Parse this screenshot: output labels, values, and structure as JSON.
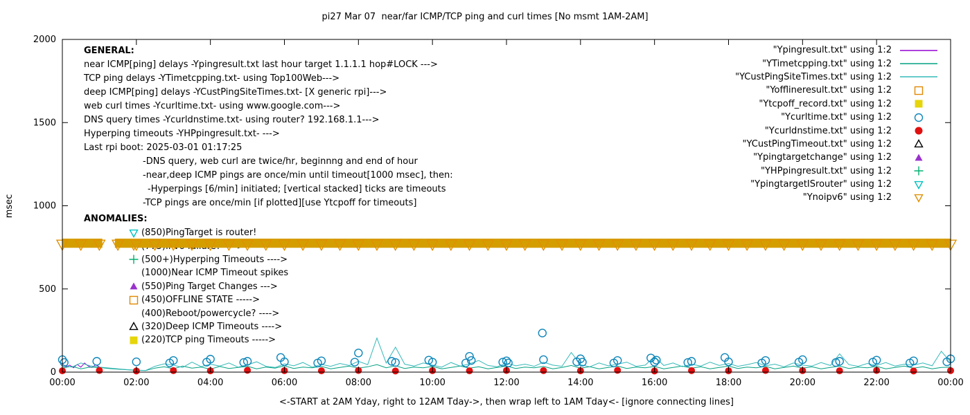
{
  "general": {
    "heading": "GENERAL:",
    "lines": [
      {
        "text": "near ICMP[ping] delays -Ypingresult.txt last hour target 1.1.1.1 hop#LOCK --->",
        "indent": 0
      },
      {
        "text": "TCP ping delays -YTimetcpping.txt- using Top100Web--->",
        "indent": 0
      },
      {
        "text": "deep ICMP[ping] delays -YCustPingSiteTimes.txt- [X generic rpi]--->",
        "indent": 0
      },
      {
        "text": "web curl times -Ycurltime.txt- using www.google.com--->",
        "indent": 0
      },
      {
        "text": "DNS query times -Ycurldnstime.txt- using router? 192.168.1.1--->",
        "indent": 0
      },
      {
        "text": "Hyperping timeouts -YHPpingresult.txt- --->",
        "indent": 0
      },
      {
        "text": "Last rpi boot: 2025-03-01 01:17:25",
        "indent": 0
      },
      {
        "text": "-DNS query, web curl are twice/hr, beginnng and end of hour",
        "indent": 85
      },
      {
        "text": "-near,deep ICMP pings are once/min until timeout[1000 msec], then:",
        "indent": 85
      },
      {
        "text": "-Hyperpings [6/min] initiated; [vertical stacked] ticks are timeouts",
        "indent": 92
      },
      {
        "text": "-TCP pings are once/min [if plotted][use Ytcpoff for timeouts]",
        "indent": 85
      }
    ]
  },
  "anomalies": {
    "heading": "ANOMALIES:",
    "items": [
      {
        "marker": "triangle-down-open",
        "color": "#00c0c0",
        "text": "(850)PingTarget is router!"
      },
      {
        "marker": "triangle-down-open",
        "color": "#e09000",
        "text": "(775)IPv6 failure? ---->"
      },
      {
        "marker": "plus",
        "color": "#00b070",
        "text": "(500+)Hyperping Timeouts ---->"
      },
      {
        "marker": "none",
        "color": "",
        "text": "(1000)Near ICMP Timeout spikes"
      },
      {
        "marker": "triangle-up-filled",
        "color": "#9932cc",
        "text": "(550)Ping Target Changes --->"
      },
      {
        "marker": "square-open",
        "color": "#e08800",
        "text": "(450)OFFLINE STATE ----->"
      },
      {
        "marker": "none",
        "color": "",
        "text": "(400)Reboot/powercycle? ---->"
      },
      {
        "marker": "triangle-up-open",
        "color": "#000000",
        "text": "(320)Deep ICMP Timeouts ---->"
      },
      {
        "marker": "square-filled",
        "color": "#e6d50a",
        "text": "(220)TCP ping Timeouts ----->"
      }
    ]
  },
  "legend": {
    "items": [
      {
        "label": "\"Ypingresult.txt\" using 1:2",
        "marker": "line",
        "color": "#9400d3"
      },
      {
        "label": "\"YTimetcpping.txt\" using 1:2",
        "marker": "line",
        "color": "#00a080"
      },
      {
        "label": "\"YCustPingSiteTimes.txt\" using 1:2",
        "marker": "line",
        "color": "#35b8b8"
      },
      {
        "label": "\"Yofflineresult.txt\" using 1:2",
        "marker": "square-open",
        "color": "#e08800"
      },
      {
        "label": "\"Ytcpoff_record.txt\" using 1:2",
        "marker": "square-filled",
        "color": "#e6d50a"
      },
      {
        "label": "\"Ycurltime.txt\" using 1:2",
        "marker": "circle-open",
        "color": "#0e86ba"
      },
      {
        "label": "\"Ycurldnstime.txt\" using 1:2",
        "marker": "circle-filled",
        "color": "#e01010"
      },
      {
        "label": "\"YCustPingTimeout.txt\" using 1:2",
        "marker": "triangle-up-open",
        "color": "#000000"
      },
      {
        "label": "\"Ypingtargetchange\" using 1:2",
        "marker": "triangle-up-filled",
        "color": "#9932cc"
      },
      {
        "label": "\"YHPpingresult.txt\" using 1:2",
        "marker": "plus",
        "color": "#00b070"
      },
      {
        "label": "\"YpingtargetISrouter\" using 1:2",
        "marker": "triangle-down-open",
        "color": "#00c0c0"
      },
      {
        "label": "\"Ynoipv6\" using 1:2",
        "marker": "triangle-down-open",
        "color": "#e09000"
      }
    ]
  },
  "chart_data": {
    "type": "line",
    "title": "pi27 Mar 07  near/far ICMP/TCP ping and curl times [No msmt 1AM-2AM]",
    "xlabel": "<-START at 2AM Yday, right to 12AM Tday->, then wrap left to 1AM Tday<- [ignore connecting lines]",
    "ylabel": "msec",
    "xlim": [
      0,
      24
    ],
    "ylim": [
      0,
      2000
    ],
    "y_ticks": [
      0,
      500,
      1000,
      1500,
      2000
    ],
    "x_ticks": [
      {
        "h": 0,
        "label": "00:00"
      },
      {
        "h": 2,
        "label": "02:00"
      },
      {
        "h": 4,
        "label": "04:00"
      },
      {
        "h": 6,
        "label": "06:00"
      },
      {
        "h": 8,
        "label": "08:00"
      },
      {
        "h": 10,
        "label": "10:00"
      },
      {
        "h": 12,
        "label": "12:00"
      },
      {
        "h": 14,
        "label": "14:00"
      },
      {
        "h": 16,
        "label": "16:00"
      },
      {
        "h": 18,
        "label": "18:00"
      },
      {
        "h": 20,
        "label": "20:00"
      },
      {
        "h": 22,
        "label": "22:00"
      },
      {
        "h": 24,
        "label": "00:00"
      }
    ],
    "series": [
      {
        "name": "Ypingresult near ICMP (last hour)",
        "type": "line",
        "color": "#9400d3",
        "points": [
          [
            0,
            50
          ],
          [
            0.1,
            32
          ],
          [
            0.2,
            42
          ],
          [
            0.3,
            26
          ],
          [
            0.4,
            46
          ],
          [
            0.5,
            30
          ],
          [
            0.6,
            55
          ],
          [
            0.7,
            36
          ],
          [
            0.8,
            28
          ],
          [
            0.9,
            44
          ],
          [
            1,
            32
          ]
        ]
      },
      {
        "name": "YTimetcpping TCP ping delays",
        "type": "line",
        "color": "#00a080",
        "x_step": 0.25,
        "values": [
          25,
          35,
          20,
          30,
          28,
          22,
          18,
          14,
          11,
          9,
          24,
          32,
          20,
          36,
          24,
          30,
          18,
          34,
          22,
          28,
          35,
          20,
          30,
          24,
          38,
          22,
          30,
          26,
          34,
          20,
          28,
          36,
          24,
          32,
          45,
          26,
          38,
          22,
          30,
          26,
          34,
          20,
          28,
          36,
          24,
          32,
          20,
          28,
          36,
          22,
          30,
          26,
          34,
          20,
          28,
          40,
          24,
          32,
          20,
          28,
          36,
          22,
          30,
          26,
          34,
          20,
          28,
          36,
          24,
          32,
          20,
          28,
          36,
          22,
          30,
          26,
          34,
          20,
          28,
          36,
          24,
          32,
          20,
          28,
          36,
          22,
          30,
          26,
          34,
          20,
          28,
          36,
          24,
          32,
          20,
          28,
          30
        ]
      },
      {
        "name": "YCustPingSiteTimes deep ICMP delays",
        "type": "line",
        "color": "#35b8b8",
        "x_step": 0.25,
        "values": [
          45,
          30,
          55,
          38,
          30,
          25,
          20,
          15,
          12,
          10,
          35,
          50,
          42,
          28,
          60,
          33,
          48,
          36,
          55,
          30,
          44,
          62,
          35,
          28,
          50,
          38,
          58,
          30,
          46,
          35,
          52,
          40,
          65,
          45,
          205,
          55,
          150,
          48,
          36,
          55,
          42,
          30,
          58,
          36,
          50,
          70,
          40,
          32,
          55,
          38,
          48,
          35,
          60,
          42,
          35,
          118,
          45,
          32,
          55,
          38,
          48,
          60,
          35,
          42,
          95,
          40,
          55,
          33,
          48,
          36,
          60,
          40,
          52,
          35,
          45,
          58,
          38,
          48,
          32,
          55,
          42,
          36,
          58,
          40,
          110,
          45,
          35,
          52,
          40,
          58,
          36,
          48,
          42,
          55,
          38,
          125,
          60
        ]
      },
      {
        "name": "Ycurltime web curl times",
        "type": "points",
        "marker": "circle-open",
        "color": "#0e86ba",
        "points": [
          [
            0,
            75
          ],
          [
            0.05,
            58
          ],
          [
            0.93,
            65
          ],
          [
            2,
            62
          ],
          [
            2.9,
            55
          ],
          [
            3,
            70
          ],
          [
            3.9,
            60
          ],
          [
            4,
            78
          ],
          [
            4.9,
            58
          ],
          [
            5,
            65
          ],
          [
            5.9,
            88
          ],
          [
            6,
            62
          ],
          [
            6.9,
            55
          ],
          [
            7,
            68
          ],
          [
            7.9,
            60
          ],
          [
            8,
            115
          ],
          [
            8.9,
            65
          ],
          [
            9,
            58
          ],
          [
            9.9,
            72
          ],
          [
            10,
            60
          ],
          [
            10.9,
            55
          ],
          [
            11,
            95
          ],
          [
            11.05,
            70
          ],
          [
            11.9,
            60
          ],
          [
            12,
            68
          ],
          [
            12.05,
            55
          ],
          [
            12.97,
            235
          ],
          [
            13,
            75
          ],
          [
            13.9,
            62
          ],
          [
            14,
            80
          ],
          [
            14.05,
            60
          ],
          [
            14.9,
            55
          ],
          [
            15,
            70
          ],
          [
            15.9,
            85
          ],
          [
            16,
            60
          ],
          [
            16.05,
            72
          ],
          [
            16.9,
            58
          ],
          [
            17,
            65
          ],
          [
            17.9,
            88
          ],
          [
            18,
            62
          ],
          [
            18.9,
            55
          ],
          [
            19,
            70
          ],
          [
            19.9,
            60
          ],
          [
            20,
            75
          ],
          [
            20.9,
            58
          ],
          [
            21,
            65
          ],
          [
            21.9,
            60
          ],
          [
            22,
            72
          ],
          [
            22.9,
            55
          ],
          [
            23,
            68
          ],
          [
            23.9,
            62
          ],
          [
            24,
            80
          ]
        ]
      },
      {
        "name": "Ycurldnstime DNS query times",
        "type": "points",
        "marker": "circle-filled",
        "color": "#e01010",
        "points": [
          [
            0,
            8
          ],
          [
            1,
            10
          ],
          [
            2,
            7
          ],
          [
            3,
            9
          ],
          [
            4,
            8
          ],
          [
            5,
            11
          ],
          [
            6,
            9
          ],
          [
            7,
            8
          ],
          [
            8,
            10
          ],
          [
            9,
            7
          ],
          [
            10,
            9
          ],
          [
            11,
            8
          ],
          [
            12,
            10
          ],
          [
            13,
            9
          ],
          [
            14,
            8
          ],
          [
            15,
            11
          ],
          [
            16,
            7
          ],
          [
            17,
            9
          ],
          [
            18,
            8
          ],
          [
            19,
            10
          ],
          [
            20,
            9
          ],
          [
            21,
            8
          ],
          [
            22,
            10
          ],
          [
            23,
            7
          ],
          [
            24,
            9
          ]
        ]
      },
      {
        "name": "Ynoipv6 IPv6-failure band",
        "type": "band",
        "color": "#d49e00",
        "y": 775,
        "thickness_msec": 55,
        "segments": [
          [
            0,
            1.08
          ],
          [
            1.42,
            24
          ]
        ],
        "marker": "triangle-down-open",
        "marker_color": "#e09000",
        "marker_interval": 0.5
      }
    ]
  }
}
